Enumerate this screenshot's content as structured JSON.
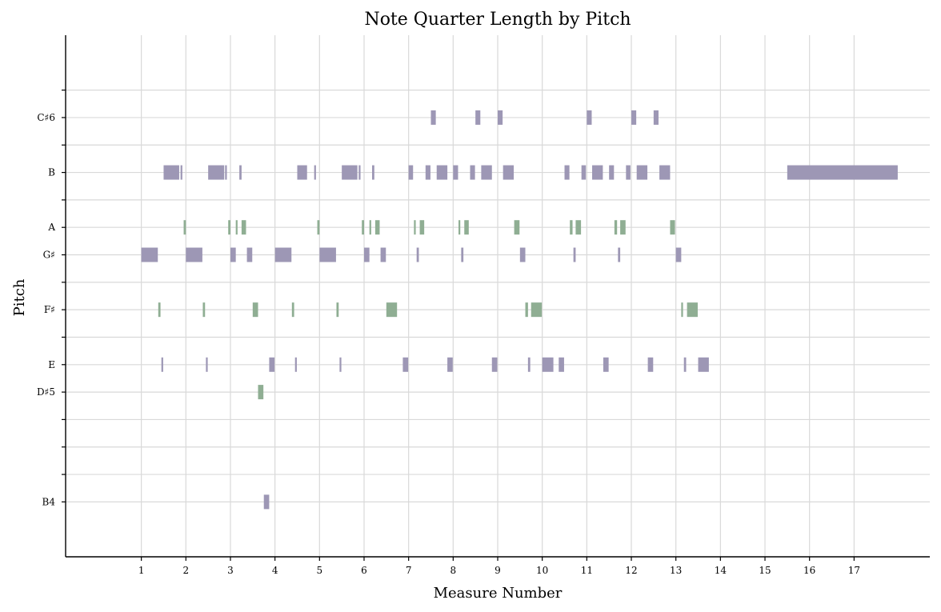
{
  "chart_data": {
    "type": "piano-roll",
    "title": "Note Quarter Length by Pitch",
    "xlabel": "Measure Number",
    "ylabel": "Pitch",
    "x_ticks": [
      1,
      2,
      3,
      4,
      5,
      6,
      7,
      8,
      9,
      10,
      11,
      12,
      13,
      14,
      15,
      16,
      17
    ],
    "xlim": [
      -0.7,
      18.7
    ],
    "ylim": [
      69,
      88
    ],
    "y_ticks": [
      {
        "midi": 71,
        "label": "B4"
      },
      {
        "midi": 72,
        "label": ""
      },
      {
        "midi": 73,
        "label": ""
      },
      {
        "midi": 74,
        "label": ""
      },
      {
        "midi": 75,
        "label": "D♯5"
      },
      {
        "midi": 76,
        "label": "E"
      },
      {
        "midi": 77,
        "label": ""
      },
      {
        "midi": 78,
        "label": "F♯"
      },
      {
        "midi": 79,
        "label": ""
      },
      {
        "midi": 80,
        "label": "G♯"
      },
      {
        "midi": 81,
        "label": "A"
      },
      {
        "midi": 82,
        "label": ""
      },
      {
        "midi": 83,
        "label": "B"
      },
      {
        "midi": 84,
        "label": ""
      },
      {
        "midi": 85,
        "label": "C♯6"
      },
      {
        "midi": 86,
        "label": ""
      }
    ],
    "grid": true,
    "colors": {
      "purple": "#9d97b5",
      "green": "#8fae93",
      "grid": "#d9d9d9"
    },
    "notes": [
      {
        "pitch": 83,
        "start": 1.5,
        "dur": 0.35,
        "color": "purple"
      },
      {
        "pitch": 83,
        "start": 1.88,
        "dur": 0.04,
        "color": "purple"
      },
      {
        "pitch": 83,
        "start": 2.5,
        "dur": 0.36,
        "color": "purple"
      },
      {
        "pitch": 83,
        "start": 2.88,
        "dur": 0.04,
        "color": "purple"
      },
      {
        "pitch": 83,
        "start": 3.2,
        "dur": 0.05,
        "color": "purple"
      },
      {
        "pitch": 83,
        "start": 4.5,
        "dur": 0.22,
        "color": "purple"
      },
      {
        "pitch": 83,
        "start": 4.88,
        "dur": 0.04,
        "color": "purple"
      },
      {
        "pitch": 83,
        "start": 5.5,
        "dur": 0.35,
        "color": "purple"
      },
      {
        "pitch": 83,
        "start": 5.88,
        "dur": 0.04,
        "color": "purple"
      },
      {
        "pitch": 83,
        "start": 6.18,
        "dur": 0.05,
        "color": "purple"
      },
      {
        "pitch": 83,
        "start": 7.0,
        "dur": 0.1,
        "color": "purple"
      },
      {
        "pitch": 83,
        "start": 7.38,
        "dur": 0.11,
        "color": "purple"
      },
      {
        "pitch": 83,
        "start": 7.63,
        "dur": 0.24,
        "color": "purple"
      },
      {
        "pitch": 83,
        "start": 8.0,
        "dur": 0.11,
        "color": "purple"
      },
      {
        "pitch": 83,
        "start": 8.38,
        "dur": 0.11,
        "color": "purple"
      },
      {
        "pitch": 83,
        "start": 8.63,
        "dur": 0.24,
        "color": "purple"
      },
      {
        "pitch": 83,
        "start": 9.12,
        "dur": 0.24,
        "color": "purple"
      },
      {
        "pitch": 83,
        "start": 10.5,
        "dur": 0.11,
        "color": "purple"
      },
      {
        "pitch": 83,
        "start": 10.88,
        "dur": 0.1,
        "color": "purple"
      },
      {
        "pitch": 83,
        "start": 11.12,
        "dur": 0.24,
        "color": "purple"
      },
      {
        "pitch": 83,
        "start": 11.5,
        "dur": 0.11,
        "color": "purple"
      },
      {
        "pitch": 83,
        "start": 11.88,
        "dur": 0.1,
        "color": "purple"
      },
      {
        "pitch": 83,
        "start": 12.12,
        "dur": 0.24,
        "color": "purple"
      },
      {
        "pitch": 83,
        "start": 12.63,
        "dur": 0.24,
        "color": "purple"
      },
      {
        "pitch": 83,
        "start": 15.5,
        "dur": 2.48,
        "color": "purple"
      },
      {
        "pitch": 85,
        "start": 7.5,
        "dur": 0.11,
        "color": "purple"
      },
      {
        "pitch": 85,
        "start": 8.5,
        "dur": 0.11,
        "color": "purple"
      },
      {
        "pitch": 85,
        "start": 9.0,
        "dur": 0.11,
        "color": "purple"
      },
      {
        "pitch": 85,
        "start": 11.0,
        "dur": 0.11,
        "color": "purple"
      },
      {
        "pitch": 85,
        "start": 12.0,
        "dur": 0.11,
        "color": "purple"
      },
      {
        "pitch": 85,
        "start": 12.5,
        "dur": 0.11,
        "color": "purple"
      },
      {
        "pitch": 81,
        "start": 1.95,
        "dur": 0.05,
        "color": "green"
      },
      {
        "pitch": 81,
        "start": 2.95,
        "dur": 0.05,
        "color": "green"
      },
      {
        "pitch": 81,
        "start": 3.12,
        "dur": 0.04,
        "color": "green"
      },
      {
        "pitch": 81,
        "start": 3.25,
        "dur": 0.1,
        "color": "green"
      },
      {
        "pitch": 81,
        "start": 4.95,
        "dur": 0.05,
        "color": "green"
      },
      {
        "pitch": 81,
        "start": 5.95,
        "dur": 0.05,
        "color": "green"
      },
      {
        "pitch": 81,
        "start": 6.12,
        "dur": 0.04,
        "color": "green"
      },
      {
        "pitch": 81,
        "start": 6.25,
        "dur": 0.1,
        "color": "green"
      },
      {
        "pitch": 81,
        "start": 7.12,
        "dur": 0.04,
        "color": "green"
      },
      {
        "pitch": 81,
        "start": 7.25,
        "dur": 0.1,
        "color": "green"
      },
      {
        "pitch": 81,
        "start": 8.12,
        "dur": 0.04,
        "color": "green"
      },
      {
        "pitch": 81,
        "start": 8.25,
        "dur": 0.1,
        "color": "green"
      },
      {
        "pitch": 81,
        "start": 9.37,
        "dur": 0.12,
        "color": "green"
      },
      {
        "pitch": 81,
        "start": 10.62,
        "dur": 0.06,
        "color": "green"
      },
      {
        "pitch": 81,
        "start": 10.75,
        "dur": 0.12,
        "color": "green"
      },
      {
        "pitch": 81,
        "start": 11.62,
        "dur": 0.06,
        "color": "green"
      },
      {
        "pitch": 81,
        "start": 11.75,
        "dur": 0.12,
        "color": "green"
      },
      {
        "pitch": 81,
        "start": 12.87,
        "dur": 0.11,
        "color": "green"
      },
      {
        "pitch": 80,
        "start": 1.0,
        "dur": 0.37,
        "color": "purple"
      },
      {
        "pitch": 80,
        "start": 2.0,
        "dur": 0.37,
        "color": "purple"
      },
      {
        "pitch": 80,
        "start": 3.0,
        "dur": 0.12,
        "color": "purple"
      },
      {
        "pitch": 80,
        "start": 3.37,
        "dur": 0.12,
        "color": "purple"
      },
      {
        "pitch": 80,
        "start": 4.0,
        "dur": 0.37,
        "color": "purple"
      },
      {
        "pitch": 80,
        "start": 5.0,
        "dur": 0.37,
        "color": "purple"
      },
      {
        "pitch": 80,
        "start": 6.0,
        "dur": 0.12,
        "color": "purple"
      },
      {
        "pitch": 80,
        "start": 6.37,
        "dur": 0.12,
        "color": "purple"
      },
      {
        "pitch": 80,
        "start": 7.18,
        "dur": 0.05,
        "color": "purple"
      },
      {
        "pitch": 80,
        "start": 8.18,
        "dur": 0.05,
        "color": "purple"
      },
      {
        "pitch": 80,
        "start": 9.5,
        "dur": 0.12,
        "color": "purple"
      },
      {
        "pitch": 80,
        "start": 10.7,
        "dur": 0.05,
        "color": "purple"
      },
      {
        "pitch": 80,
        "start": 11.7,
        "dur": 0.05,
        "color": "purple"
      },
      {
        "pitch": 80,
        "start": 13.0,
        "dur": 0.12,
        "color": "purple"
      },
      {
        "pitch": 78,
        "start": 1.38,
        "dur": 0.05,
        "color": "green"
      },
      {
        "pitch": 78,
        "start": 2.38,
        "dur": 0.05,
        "color": "green"
      },
      {
        "pitch": 78,
        "start": 3.5,
        "dur": 0.12,
        "color": "green"
      },
      {
        "pitch": 78,
        "start": 4.38,
        "dur": 0.05,
        "color": "green"
      },
      {
        "pitch": 78,
        "start": 5.38,
        "dur": 0.05,
        "color": "green"
      },
      {
        "pitch": 78,
        "start": 6.5,
        "dur": 0.24,
        "color": "green"
      },
      {
        "pitch": 78,
        "start": 9.62,
        "dur": 0.06,
        "color": "green"
      },
      {
        "pitch": 78,
        "start": 9.75,
        "dur": 0.24,
        "color": "green"
      },
      {
        "pitch": 78,
        "start": 13.12,
        "dur": 0.04,
        "color": "green"
      },
      {
        "pitch": 78,
        "start": 13.25,
        "dur": 0.24,
        "color": "green"
      },
      {
        "pitch": 76,
        "start": 1.45,
        "dur": 0.04,
        "color": "purple"
      },
      {
        "pitch": 76,
        "start": 2.45,
        "dur": 0.04,
        "color": "purple"
      },
      {
        "pitch": 76,
        "start": 3.87,
        "dur": 0.12,
        "color": "purple"
      },
      {
        "pitch": 76,
        "start": 4.45,
        "dur": 0.04,
        "color": "purple"
      },
      {
        "pitch": 76,
        "start": 5.45,
        "dur": 0.04,
        "color": "purple"
      },
      {
        "pitch": 76,
        "start": 6.87,
        "dur": 0.12,
        "color": "purple"
      },
      {
        "pitch": 76,
        "start": 7.87,
        "dur": 0.12,
        "color": "purple"
      },
      {
        "pitch": 76,
        "start": 8.87,
        "dur": 0.12,
        "color": "purple"
      },
      {
        "pitch": 76,
        "start": 9.68,
        "dur": 0.05,
        "color": "purple"
      },
      {
        "pitch": 76,
        "start": 10.0,
        "dur": 0.25,
        "color": "purple"
      },
      {
        "pitch": 76,
        "start": 10.37,
        "dur": 0.12,
        "color": "purple"
      },
      {
        "pitch": 76,
        "start": 11.37,
        "dur": 0.12,
        "color": "purple"
      },
      {
        "pitch": 76,
        "start": 12.37,
        "dur": 0.12,
        "color": "purple"
      },
      {
        "pitch": 76,
        "start": 13.18,
        "dur": 0.05,
        "color": "purple"
      },
      {
        "pitch": 76,
        "start": 13.5,
        "dur": 0.24,
        "color": "purple"
      },
      {
        "pitch": 75,
        "start": 3.62,
        "dur": 0.12,
        "color": "green"
      },
      {
        "pitch": 71,
        "start": 3.75,
        "dur": 0.12,
        "color": "purple"
      }
    ]
  }
}
